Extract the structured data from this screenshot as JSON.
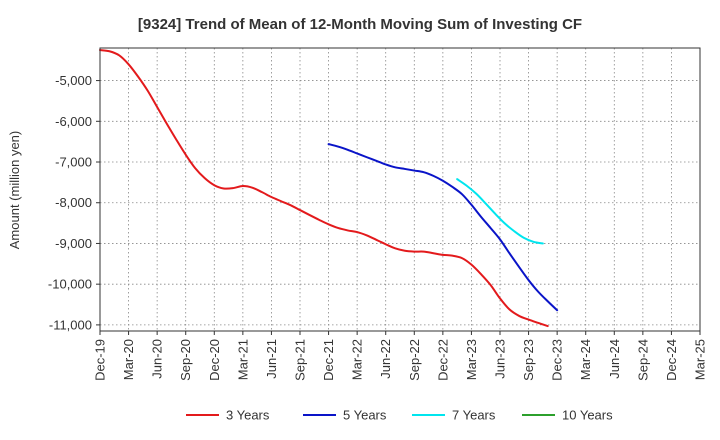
{
  "chart_data": {
    "type": "line",
    "title": "[9324]  Trend of Mean of 12-Month Moving Sum of Investing CF",
    "xlabel": "",
    "ylabel": "Amount (million yen)",
    "ylim": [
      -11150,
      -4200
    ],
    "y_ticks": [
      -11000,
      -10000,
      -9000,
      -8000,
      -7000,
      -6000,
      -5000
    ],
    "y_tick_labels": [
      "-11,000",
      "-10,000",
      "-9,000",
      "-8,000",
      "-7,000",
      "-6,000",
      "-5,000"
    ],
    "x_tick_labels": [
      "Dec-19",
      "Mar-20",
      "Jun-20",
      "Sep-20",
      "Dec-20",
      "Mar-21",
      "Jun-21",
      "Sep-21",
      "Dec-21",
      "Mar-22",
      "Jun-22",
      "Sep-22",
      "Dec-22",
      "Mar-23",
      "Jun-23",
      "Sep-23",
      "Dec-23",
      "Mar-24",
      "Jun-24",
      "Sep-24",
      "Dec-24",
      "Mar-25"
    ],
    "x_unit": "quarter index (0 = Dec-19)",
    "grid": true,
    "legend_position": "bottom",
    "series": [
      {
        "name": "3 Years",
        "color": "#e31a1c",
        "points": [
          [
            0,
            -4250
          ],
          [
            0.33,
            -4280
          ],
          [
            0.67,
            -4380
          ],
          [
            1,
            -4600
          ],
          [
            1.33,
            -4900
          ],
          [
            1.67,
            -5250
          ],
          [
            2,
            -5650
          ],
          [
            2.33,
            -6050
          ],
          [
            2.67,
            -6450
          ],
          [
            3,
            -6820
          ],
          [
            3.33,
            -7150
          ],
          [
            3.67,
            -7400
          ],
          [
            4,
            -7570
          ],
          [
            4.33,
            -7650
          ],
          [
            4.67,
            -7640
          ],
          [
            5,
            -7590
          ],
          [
            5.33,
            -7630
          ],
          [
            5.67,
            -7740
          ],
          [
            6,
            -7860
          ],
          [
            6.33,
            -7960
          ],
          [
            6.67,
            -8060
          ],
          [
            7,
            -8180
          ],
          [
            7.33,
            -8300
          ],
          [
            7.67,
            -8420
          ],
          [
            8,
            -8530
          ],
          [
            8.33,
            -8620
          ],
          [
            8.67,
            -8680
          ],
          [
            9,
            -8720
          ],
          [
            9.33,
            -8800
          ],
          [
            9.67,
            -8910
          ],
          [
            10,
            -9020
          ],
          [
            10.33,
            -9120
          ],
          [
            10.67,
            -9180
          ],
          [
            11,
            -9200
          ],
          [
            11.33,
            -9200
          ],
          [
            11.67,
            -9240
          ],
          [
            12,
            -9280
          ],
          [
            12.33,
            -9300
          ],
          [
            12.67,
            -9360
          ],
          [
            13,
            -9520
          ],
          [
            13.33,
            -9750
          ],
          [
            13.67,
            -10020
          ],
          [
            14,
            -10350
          ],
          [
            14.33,
            -10620
          ],
          [
            14.67,
            -10780
          ],
          [
            15,
            -10870
          ],
          [
            15.33,
            -10950
          ],
          [
            15.67,
            -11030
          ]
        ]
      },
      {
        "name": "5 Years",
        "color": "#0a14c8",
        "points": [
          [
            8,
            -6560
          ],
          [
            8.33,
            -6620
          ],
          [
            8.67,
            -6700
          ],
          [
            9,
            -6790
          ],
          [
            9.33,
            -6880
          ],
          [
            9.67,
            -6970
          ],
          [
            10,
            -7060
          ],
          [
            10.33,
            -7130
          ],
          [
            10.67,
            -7170
          ],
          [
            11,
            -7210
          ],
          [
            11.33,
            -7250
          ],
          [
            11.67,
            -7340
          ],
          [
            12,
            -7460
          ],
          [
            12.33,
            -7610
          ],
          [
            12.67,
            -7790
          ],
          [
            13,
            -8050
          ],
          [
            13.33,
            -8340
          ],
          [
            13.67,
            -8620
          ],
          [
            14,
            -8900
          ],
          [
            14.33,
            -9240
          ],
          [
            14.67,
            -9580
          ],
          [
            15,
            -9900
          ],
          [
            15.33,
            -10180
          ],
          [
            15.67,
            -10420
          ],
          [
            16,
            -10640
          ]
        ]
      },
      {
        "name": "7 Years",
        "color": "#00e5ee",
        "points": [
          [
            12.5,
            -7420
          ],
          [
            12.83,
            -7580
          ],
          [
            13.17,
            -7780
          ],
          [
            13.5,
            -8020
          ],
          [
            13.83,
            -8270
          ],
          [
            14.17,
            -8510
          ],
          [
            14.5,
            -8700
          ],
          [
            14.83,
            -8860
          ],
          [
            15.17,
            -8960
          ],
          [
            15.5,
            -9000
          ]
        ]
      },
      {
        "name": "10 Years",
        "color": "#2ca02c",
        "points": []
      }
    ]
  }
}
